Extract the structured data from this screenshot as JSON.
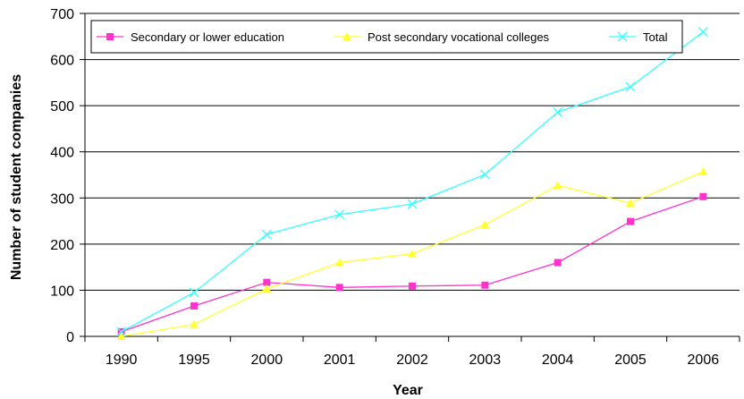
{
  "chart_data": {
    "type": "line",
    "title": "",
    "xlabel": "Year",
    "ylabel": "Number of student companies",
    "categories": [
      "1990",
      "1995",
      "2000",
      "2001",
      "2002",
      "2003",
      "2004",
      "2005",
      "2006"
    ],
    "y_ticks": [
      "0",
      "100",
      "200",
      "300",
      "400",
      "500",
      "600",
      "700"
    ],
    "ylim": [
      0,
      700
    ],
    "grid": "horizontal",
    "legend_position": "top-left",
    "series": [
      {
        "name": "Secondary or lower education",
        "marker": "square",
        "color": "#ff33cc",
        "values": [
          10,
          66,
          117,
          106,
          109,
          111,
          160,
          249,
          303
        ]
      },
      {
        "name": "Post secondary vocational colleges",
        "marker": "triangle",
        "color": "#ffff33",
        "values": [
          0,
          26,
          103,
          160,
          179,
          242,
          327,
          289,
          357
        ]
      },
      {
        "name": "Total",
        "marker": "x",
        "color": "#33ffff",
        "values": [
          10,
          95,
          221,
          264,
          287,
          351,
          486,
          541,
          660
        ]
      }
    ]
  }
}
